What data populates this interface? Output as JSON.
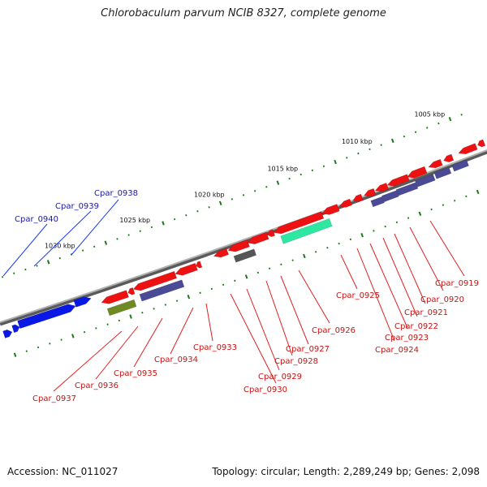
{
  "title": "Chlorobaculum parvum NCIB 8327, complete genome",
  "footer": {
    "accession": "Accession: NC_011027",
    "summary": "Topology: circular; Length: 2,289,249 bp; Genes: 2,098"
  },
  "colors": {
    "backbone": "#7a7a7a",
    "ticks": "#1a7a1a",
    "forward_label": "#1a1aa0",
    "reverse_label": "#cc1111",
    "cds_red": "#ee1111",
    "cds_blue": "#0a18e6",
    "cds_purple": "#4a4a96",
    "cds_olive": "#6f8a22",
    "cds_grey": "#555555",
    "cds_green": "#2ee8a2"
  },
  "scale_labels": [
    "1005 kbp",
    "1010 kbp",
    "1015 kbp",
    "1020 kbp",
    "1025 kbp",
    "1030 kbp"
  ],
  "genes": [
    {
      "id": "Cpar_0940",
      "strand": "forward"
    },
    {
      "id": "Cpar_0939",
      "strand": "forward"
    },
    {
      "id": "Cpar_0938",
      "strand": "forward"
    },
    {
      "id": "Cpar_0937",
      "strand": "reverse"
    },
    {
      "id": "Cpar_0936",
      "strand": "reverse"
    },
    {
      "id": "Cpar_0935",
      "strand": "reverse"
    },
    {
      "id": "Cpar_0934",
      "strand": "reverse"
    },
    {
      "id": "Cpar_0933",
      "strand": "reverse"
    },
    {
      "id": "Cpar_0930",
      "strand": "reverse"
    },
    {
      "id": "Cpar_0929",
      "strand": "reverse"
    },
    {
      "id": "Cpar_0928",
      "strand": "reverse"
    },
    {
      "id": "Cpar_0927",
      "strand": "reverse"
    },
    {
      "id": "Cpar_0926",
      "strand": "reverse"
    },
    {
      "id": "Cpar_0925",
      "strand": "reverse"
    },
    {
      "id": "Cpar_0924",
      "strand": "reverse"
    },
    {
      "id": "Cpar_0923",
      "strand": "reverse"
    },
    {
      "id": "Cpar_0922",
      "strand": "reverse"
    },
    {
      "id": "Cpar_0921",
      "strand": "reverse"
    },
    {
      "id": "Cpar_0920",
      "strand": "reverse"
    },
    {
      "id": "Cpar_0919",
      "strand": "reverse"
    }
  ]
}
